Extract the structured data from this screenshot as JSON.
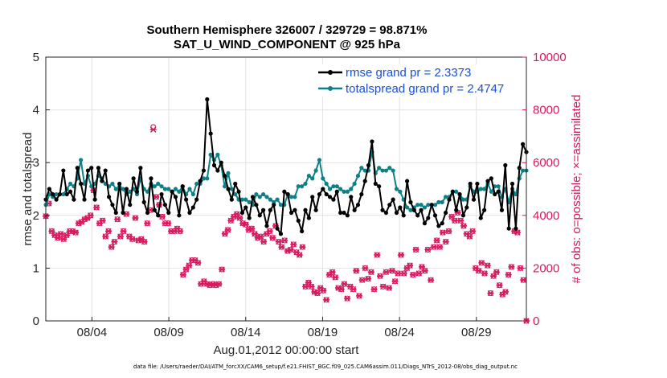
{
  "chart_data": {
    "type": "line",
    "title": "Southern Hemisphere 326007 / 329729 = 98.871%",
    "subtitle": "SAT_U_WIND_COMPONENT @ 925 hPa",
    "xlabel": "Aug.01,2012 00:00:00 start",
    "ylabel": "rmse and totalspread",
    "ylabel_right": "# of obs: o=possible; ×=assimilated",
    "footnote": "data file: /Users/raeder/DAI/ATM_forcXX/CAM6_setup/f.e21.FHIST_BGC.f09_025.CAM6assim.011/Diags_NTrS_2012-08/obs_diag_output.nc",
    "x_ticks": [
      "08/04",
      "08/09",
      "08/14",
      "08/19",
      "08/24",
      "08/29"
    ],
    "x_tick_days": [
      4,
      9,
      14,
      19,
      24,
      29
    ],
    "xlim": [
      1,
      32.25
    ],
    "ylim": [
      0,
      5
    ],
    "y_ticks": [
      "0",
      "1",
      "2",
      "3",
      "4",
      "5"
    ],
    "y2lim": [
      0,
      10000
    ],
    "y2_ticks": [
      "0",
      "2000",
      "4000",
      "6000",
      "8000",
      "10000"
    ],
    "grid": true,
    "legend_position": "top-right",
    "colors": {
      "rmse": "#000000",
      "spread": "#0e8087",
      "obs": "#d6185f",
      "legend_text": "#1a4fd6"
    },
    "series": [
      {
        "name": "rmse grand pr = 2.3373",
        "values": [
          2.3,
          2.5,
          2.4,
          2.3,
          2.4,
          2.85,
          2.4,
          2.45,
          2.3,
          2.9,
          2.6,
          2.3,
          2.85,
          2.9,
          2.3,
          2.9,
          2.65,
          2.85,
          2.35,
          2.2,
          2.05,
          2.6,
          2.05,
          2.5,
          2.2,
          2.7,
          2.45,
          2.9,
          2.25,
          2.05,
          2.7,
          2.1,
          2.0,
          2.4,
          2.2,
          2.05,
          2.45,
          2.35,
          2.0,
          2.55,
          2.3,
          2.05,
          2.15,
          2.3,
          2.65,
          2.85,
          4.2,
          3.55,
          2.95,
          2.85,
          3.0,
          2.75,
          2.5,
          2.3,
          2.6,
          2.45,
          2.05,
          2.15,
          1.95,
          2.35,
          2.2,
          2.0,
          2.1,
          1.8,
          2.1,
          2.2,
          1.75,
          1.65,
          2.45,
          2.4,
          2.05,
          2.1,
          1.9,
          1.7,
          2.1,
          1.95,
          2.35,
          2.1,
          2.4,
          2.5,
          2.4,
          2.35,
          2.3,
          2.45,
          2.05,
          2.05,
          2.0,
          2.35,
          2.1,
          2.2,
          2.4,
          2.65,
          2.95,
          3.4,
          2.6,
          2.55,
          2.1,
          2.05,
          2.2,
          2.3,
          2.05,
          2.15,
          2.0,
          2.65,
          2.25,
          2.1,
          2.0,
          2.1,
          1.85,
          1.95,
          2.2,
          2.0,
          1.8,
          1.85,
          2.05,
          2.3,
          2.45,
          2.1,
          2.4,
          2.0,
          2.15,
          2.6,
          2.3,
          2.6,
          1.95,
          2.1,
          2.65,
          2.7,
          2.4,
          2.45,
          2.1,
          2.95,
          1.75,
          2.6,
          1.75,
          2.9,
          3.35,
          3.2
        ],
        "color": "#000000"
      },
      {
        "name": "totalspread grand pr = 2.4747",
        "values": [
          2.2,
          2.4,
          2.35,
          2.4,
          2.4,
          2.4,
          2.5,
          2.6,
          2.55,
          2.7,
          3.05,
          2.6,
          2.75,
          2.55,
          2.6,
          2.75,
          2.7,
          2.6,
          2.55,
          2.6,
          2.5,
          2.55,
          2.5,
          2.4,
          2.45,
          2.5,
          2.4,
          2.7,
          2.5,
          2.45,
          2.6,
          2.55,
          2.6,
          2.55,
          2.5,
          2.5,
          2.45,
          2.5,
          2.45,
          2.55,
          2.4,
          2.5,
          2.4,
          2.6,
          2.6,
          2.7,
          2.7,
          3.15,
          3.05,
          3.15,
          2.95,
          2.55,
          2.8,
          2.5,
          2.4,
          2.3,
          2.3,
          2.3,
          2.25,
          2.2,
          2.4,
          2.35,
          2.4,
          2.35,
          2.3,
          2.25,
          2.3,
          2.2,
          2.2,
          2.4,
          2.35,
          2.35,
          2.55,
          2.55,
          2.6,
          2.75,
          2.7,
          2.85,
          3.05,
          2.7,
          2.6,
          2.5,
          2.55,
          2.55,
          2.5,
          2.45,
          2.45,
          2.5,
          2.6,
          2.75,
          2.9,
          2.85,
          2.85,
          3.2,
          2.8,
          2.9,
          2.85,
          2.85,
          2.9,
          2.85,
          2.5,
          2.45,
          2.3,
          2.15,
          2.1,
          2.15,
          2.2,
          2.2,
          2.15,
          2.2,
          2.2,
          2.2,
          2.25,
          2.25,
          2.35,
          2.35,
          2.45,
          2.45,
          2.4,
          2.3,
          2.3,
          2.55,
          2.45,
          2.45,
          2.5,
          2.5,
          2.6,
          2.45,
          2.55,
          2.55,
          2.35,
          2.5,
          2.25,
          2.5,
          2.4,
          2.7,
          2.85,
          2.85
        ],
        "color": "#0e8087"
      }
    ],
    "obs_possible": [
      3970,
      4450,
      3400,
      3250,
      3150,
      3300,
      3100,
      3250,
      3400,
      3400,
      3350,
      3700,
      3750,
      3850,
      3900,
      4000,
      4950,
      4300,
      3700,
      3800,
      3200,
      3400,
      2800,
      3000,
      3850,
      3200,
      3400,
      4050,
      3200,
      3100,
      3900,
      3050,
      3100,
      3000,
      3700,
      4200,
      7350,
      4700,
      4400,
      3950,
      3700,
      3700,
      3400,
      3400,
      3500,
      3400,
      1750,
      1950,
      2100,
      2300,
      2300,
      2200,
      1400,
      1500,
      1400,
      1350,
      1400,
      1350,
      1400,
      1950,
      3300,
      3450,
      3800,
      3950,
      4050,
      3900,
      3700,
      3650,
      3450,
      3500,
      3300,
      3150,
      3200,
      3000,
      3300,
      3400,
      3150,
      3600,
      3000,
      2800,
      3050,
      2650,
      2700,
      2900,
      2600,
      2500,
      2800,
      1300,
      1450,
      1300,
      1100,
      1050,
      1250,
      1150,
      800,
      1750,
      1850,
      1650,
      1250,
      1200,
      1400,
      850,
      1300,
      1200,
      1900,
      950,
      1550,
      2000,
      1600,
      1850,
      1200,
      2500,
      1700,
      1300,
      1850,
      1250,
      1900,
      1500,
      1800,
      2500,
      1800,
      2000,
      2100,
      1750,
      2700,
      1800,
      2050,
      1900,
      2700,
      1550,
      2800,
      3050,
      2800,
      3350,
      3000,
      3400,
      3950,
      3800,
      4100,
      3800,
      3600,
      3300,
      3200,
      3400,
      2000,
      1900,
      2200,
      1800,
      2100,
      1050,
      1700,
      1850,
      1350,
      1000,
      1100,
      1750,
      2050,
      3400,
      3350,
      2000,
      1550,
      0
    ],
    "obs_assimilated": [
      3970,
      4450,
      3400,
      3250,
      3150,
      3300,
      3100,
      3250,
      3400,
      3400,
      3350,
      3700,
      3750,
      3850,
      3900,
      4000,
      4950,
      4300,
      3700,
      3800,
      3200,
      3400,
      2800,
      3000,
      3850,
      3200,
      3400,
      4050,
      3200,
      3100,
      3900,
      3050,
      3100,
      3000,
      3700,
      4200,
      7250,
      4700,
      4400,
      3950,
      3700,
      3700,
      3400,
      3400,
      3500,
      3400,
      1750,
      1950,
      2100,
      2300,
      2300,
      2200,
      1400,
      1500,
      1400,
      1350,
      1400,
      1350,
      1400,
      1950,
      3300,
      3450,
      3800,
      3950,
      4050,
      3900,
      3700,
      3650,
      3450,
      3500,
      3300,
      3150,
      3200,
      3000,
      3300,
      3400,
      3150,
      3600,
      3000,
      2800,
      3050,
      2650,
      2700,
      2900,
      2600,
      2500,
      2800,
      1300,
      1450,
      1300,
      1100,
      1050,
      1250,
      1150,
      800,
      1750,
      1850,
      1650,
      1250,
      1200,
      1400,
      850,
      1300,
      1200,
      1900,
      950,
      1550,
      2000,
      1600,
      1850,
      1200,
      2500,
      1700,
      1300,
      1850,
      1250,
      1900,
      1500,
      1800,
      2500,
      1800,
      2000,
      2100,
      1750,
      2700,
      1800,
      2050,
      1900,
      2700,
      1550,
      2800,
      3050,
      2800,
      3350,
      3000,
      3400,
      3950,
      3800,
      4100,
      3800,
      3600,
      3300,
      3200,
      3400,
      2000,
      1900,
      2200,
      1800,
      2100,
      1050,
      1700,
      1850,
      1350,
      1000,
      1100,
      1750,
      2050,
      3400,
      3350,
      2000,
      1550,
      0
    ]
  }
}
